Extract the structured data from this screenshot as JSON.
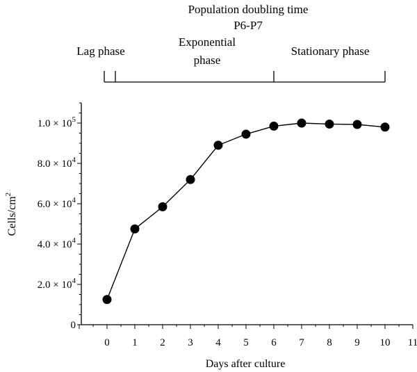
{
  "chart_data": {
    "type": "line",
    "title": "Population doubling time",
    "subtitle": "P6-P7",
    "xlabel": "Days after culture",
    "ylabel": {
      "base": "Cells/cm",
      "sup": "2"
    },
    "xlim": [
      -1,
      11
    ],
    "ylim": [
      0,
      110000
    ],
    "x_ticks": [
      0,
      1,
      2,
      3,
      4,
      5,
      6,
      7,
      8,
      9,
      10,
      11
    ],
    "y_ticks": [
      {
        "value": 0,
        "label": "0"
      },
      {
        "value": 20000,
        "label": "2.0 × 10",
        "exp": "4"
      },
      {
        "value": 40000,
        "label": "4.0 × 10",
        "exp": "4"
      },
      {
        "value": 60000,
        "label": "6.0 × 10",
        "exp": "4"
      },
      {
        "value": 80000,
        "label": "8.0 × 10",
        "exp": "4"
      },
      {
        "value": 100000,
        "label": "1.0 × 10",
        "exp": "5"
      }
    ],
    "series": [
      {
        "x": [
          0,
          1,
          2,
          3,
          4,
          5,
          6,
          7,
          8,
          9,
          10
        ],
        "values": [
          12500,
          47500,
          58500,
          72000,
          89000,
          94500,
          98500,
          100000,
          99500,
          99300,
          98000
        ],
        "color": "#000000",
        "marker": "circle"
      }
    ],
    "phases": [
      {
        "label_lines": [
          "Lag phase"
        ],
        "start": -0.1,
        "end": 0.3
      },
      {
        "label_lines": [
          "Exponential",
          "phase"
        ],
        "start": 0.3,
        "end": 6
      },
      {
        "label_lines": [
          "Stationary phase"
        ],
        "start": 6,
        "end": 10
      }
    ]
  }
}
